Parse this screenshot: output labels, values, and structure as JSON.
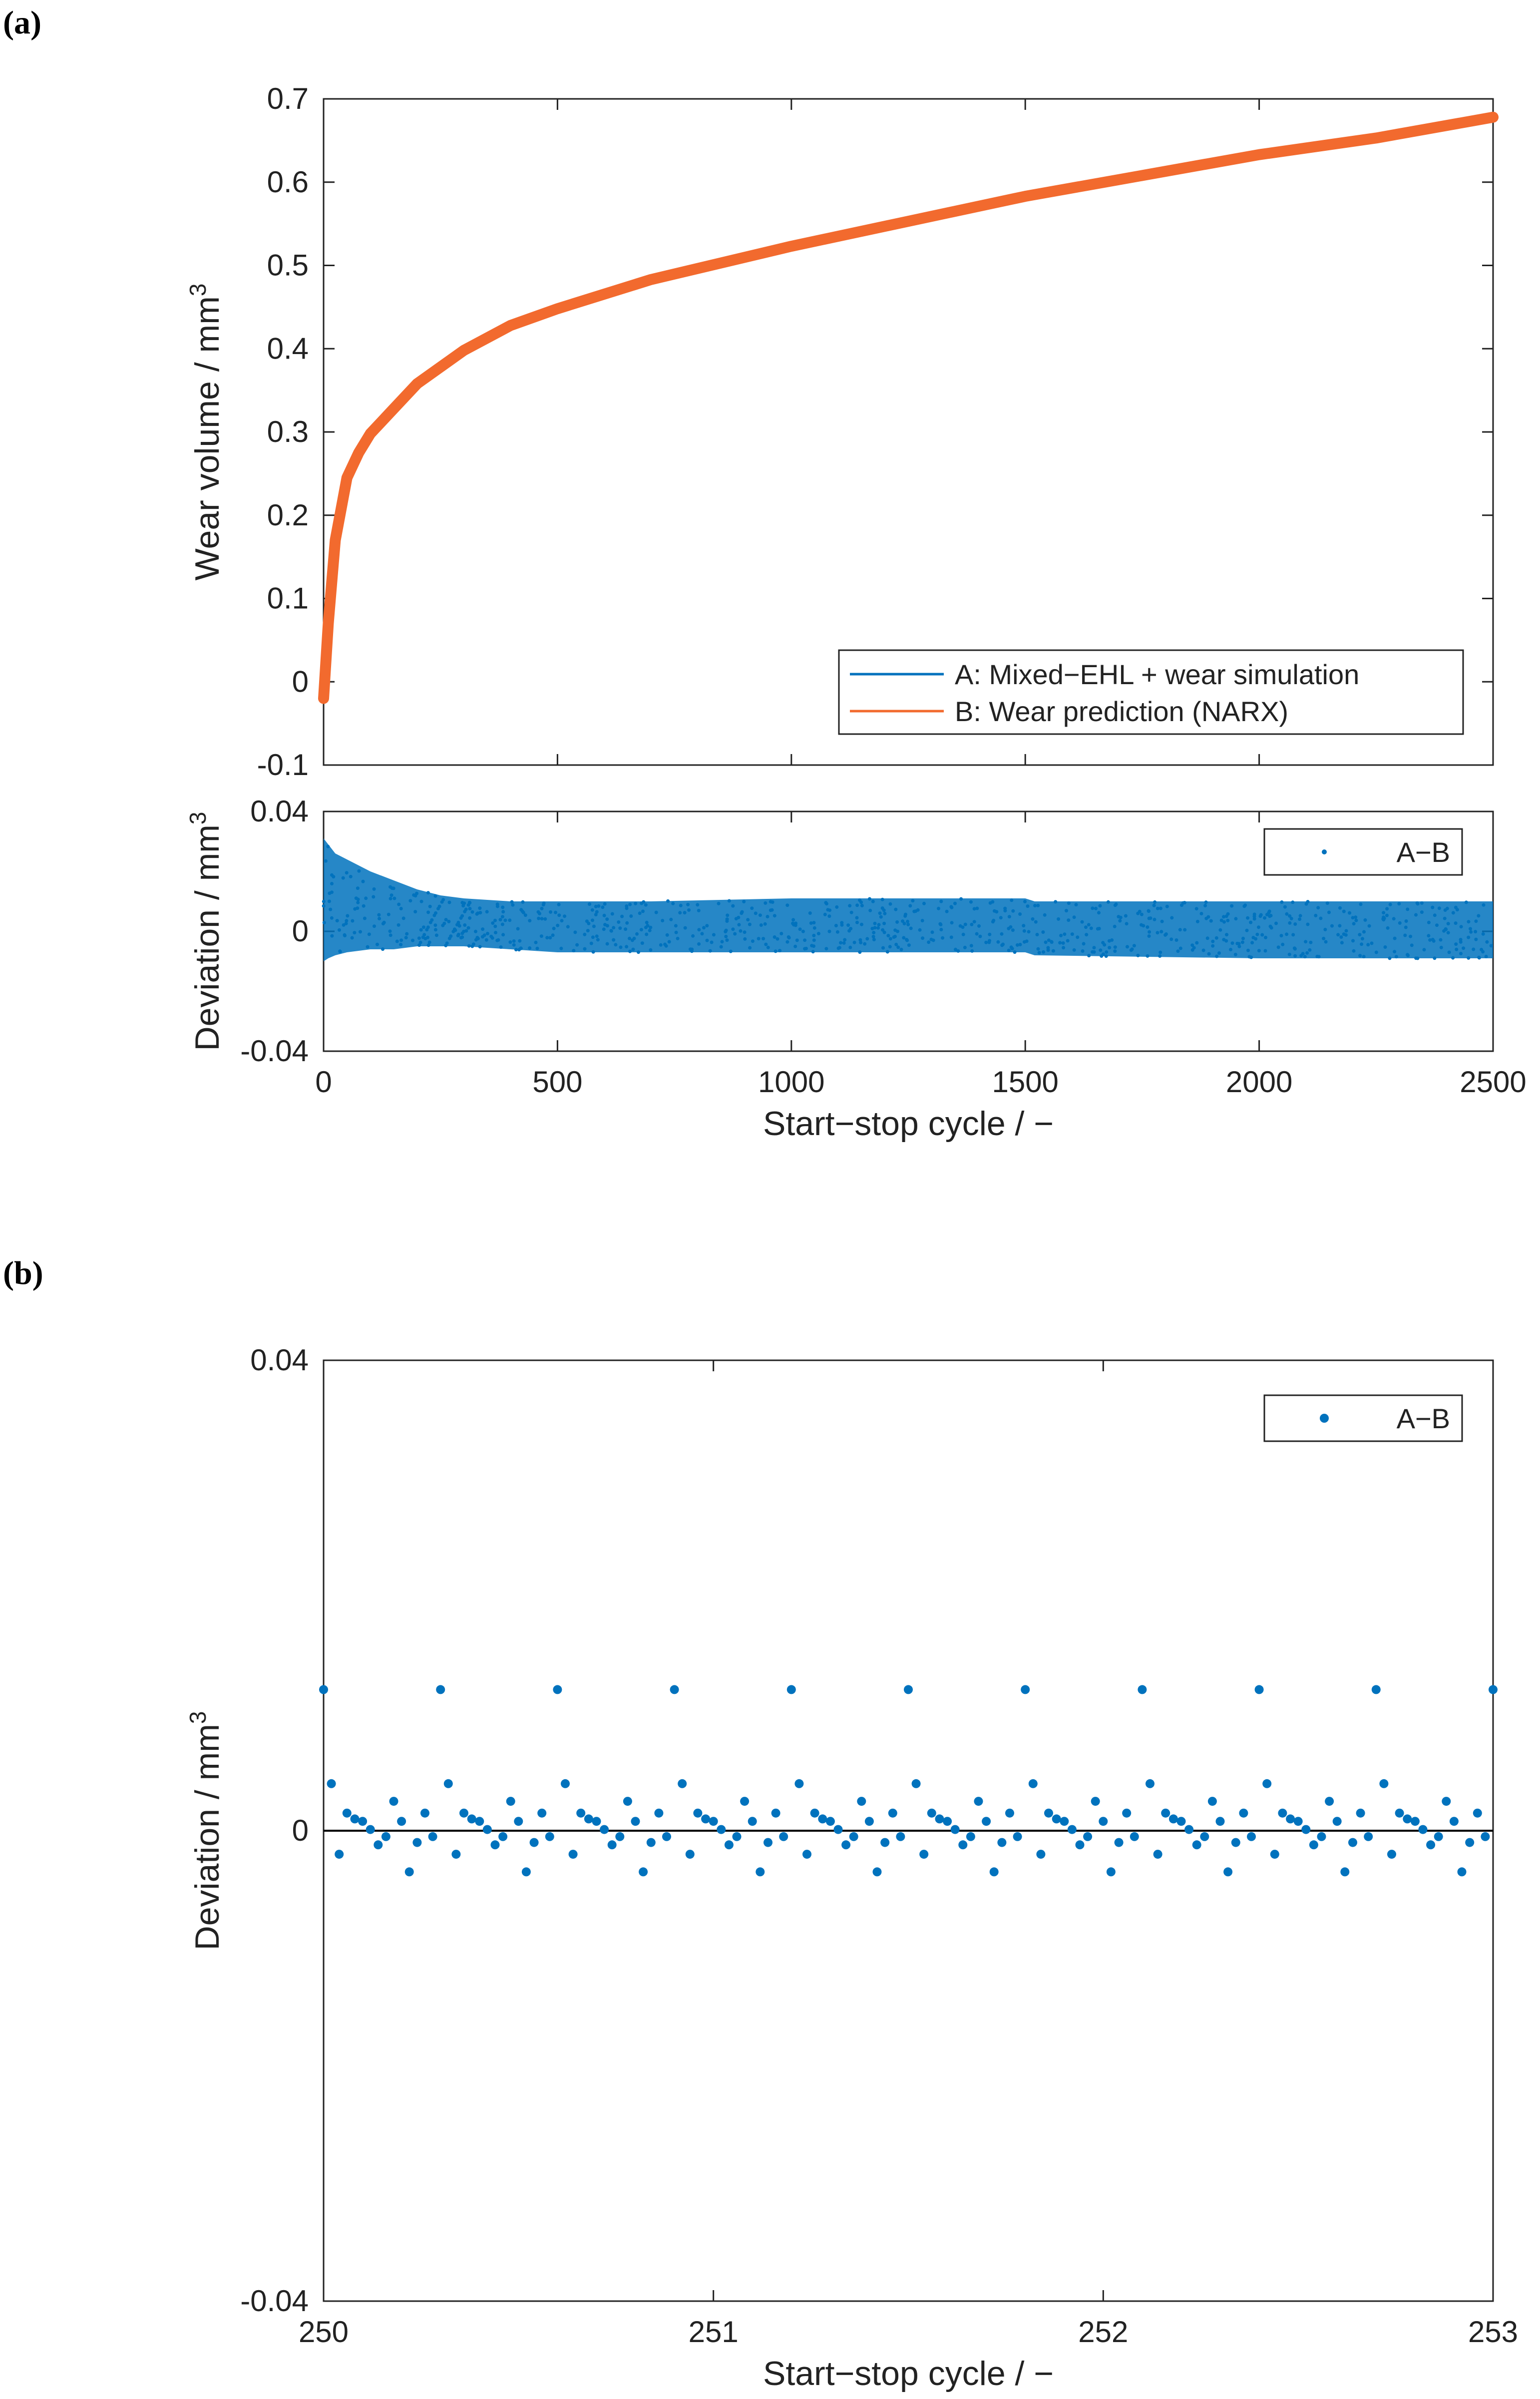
{
  "figure": {
    "panel_a_label": "(a)",
    "panel_b_label": "(b)",
    "colors": {
      "series_a": "#0072BD",
      "series_b": "#F26A2E",
      "zero_line": "#000000",
      "axis": "#222222"
    }
  },
  "chart_data": [
    {
      "id": "a_top",
      "type": "line",
      "title": "",
      "xlabel": "",
      "ylabel": "Wear volume / mm",
      "ylabel_sup": "3",
      "xlim": [
        0,
        2500
      ],
      "ylim": [
        -0.1,
        0.7
      ],
      "xticks": [
        0,
        500,
        1000,
        1500,
        2000,
        2500
      ],
      "xtick_labels": [],
      "yticks": [
        -0.1,
        0,
        0.1,
        0.2,
        0.3,
        0.4,
        0.5,
        0.6,
        0.7
      ],
      "ytick_labels": [
        "-0.1",
        "0",
        "0.1",
        "0.2",
        "0.3",
        "0.4",
        "0.5",
        "0.6",
        "0.7"
      ],
      "legend_position": "bottom-right",
      "series": [
        {
          "name": "A: Mixed−EHL + wear simulation",
          "x": [
            0,
            10,
            25,
            50,
            75,
            100,
            150,
            200,
            300,
            400,
            500,
            700,
            1000,
            1250,
            1500,
            1750,
            2000,
            2250,
            2500
          ],
          "y": [
            -0.01,
            0.08,
            0.18,
            0.25,
            0.28,
            0.3,
            0.33,
            0.36,
            0.4,
            0.43,
            0.45,
            0.485,
            0.525,
            0.555,
            0.585,
            0.61,
            0.635,
            0.655,
            0.68
          ]
        },
        {
          "name": "B: Wear prediction (NARX)",
          "x": [
            0,
            10,
            25,
            50,
            75,
            100,
            150,
            200,
            300,
            400,
            500,
            700,
            1000,
            1250,
            1500,
            1750,
            2000,
            2250,
            2500
          ],
          "y": [
            -0.02,
            0.07,
            0.17,
            0.245,
            0.275,
            0.298,
            0.328,
            0.358,
            0.398,
            0.428,
            0.448,
            0.483,
            0.523,
            0.553,
            0.583,
            0.608,
            0.633,
            0.653,
            0.678
          ]
        }
      ]
    },
    {
      "id": "a_bottom",
      "type": "scatter",
      "title": "",
      "xlabel": "Start−stop cycle / −",
      "ylabel": "Deviation / mm",
      "ylabel_sup": "3",
      "xlim": [
        0,
        2500
      ],
      "ylim": [
        -0.04,
        0.04
      ],
      "xticks": [
        0,
        500,
        1000,
        1500,
        2000,
        2500
      ],
      "xtick_labels": [
        "0",
        "500",
        "1000",
        "1500",
        "2000",
        "2500"
      ],
      "yticks": [
        -0.04,
        0,
        0.04
      ],
      "ytick_labels": [
        "-0.04",
        "0",
        "0.04"
      ],
      "legend_position": "top-right",
      "series": [
        {
          "name": "A−B",
          "envelope_x": [
            0,
            10,
            25,
            50,
            100,
            150,
            200,
            250,
            300,
            400,
            500,
            700,
            1000,
            1500,
            1520,
            2000,
            2500
          ],
          "envelope_max": [
            0.031,
            0.029,
            0.026,
            0.024,
            0.02,
            0.017,
            0.014,
            0.012,
            0.011,
            0.01,
            0.01,
            0.01,
            0.011,
            0.011,
            0.01,
            0.01,
            0.01
          ],
          "envelope_min": [
            -0.01,
            -0.009,
            -0.008,
            -0.007,
            -0.006,
            -0.006,
            -0.005,
            -0.005,
            -0.005,
            -0.006,
            -0.007,
            -0.007,
            -0.007,
            -0.007,
            -0.008,
            -0.009,
            -0.009
          ]
        }
      ]
    },
    {
      "id": "b",
      "type": "scatter",
      "title": "",
      "xlabel": "Start−stop cycle / −",
      "ylabel": "Deviation / mm",
      "ylabel_sup": "3",
      "xlim": [
        250,
        253
      ],
      "ylim": [
        -0.04,
        0.04
      ],
      "xticks": [
        250,
        251,
        252,
        253
      ],
      "xtick_labels": [
        "250",
        "251",
        "252",
        "253"
      ],
      "yticks": [
        -0.04,
        0,
        0.04
      ],
      "ytick_labels": [
        "-0.04",
        "0",
        "0.04"
      ],
      "legend_position": "top-right",
      "zero_line": true,
      "series": [
        {
          "name": "A−B",
          "cycle_pattern": [
            0.012,
            0.004,
            -0.002,
            0.0015,
            0.001,
            0.0008,
            0.0001,
            -0.0012,
            -0.0005,
            0.0025,
            0.0008,
            -0.0035,
            -0.001,
            0.0015,
            -0.0005
          ],
          "points_per_cycle": 50,
          "x_start": 250,
          "x_end": 253
        }
      ]
    }
  ]
}
